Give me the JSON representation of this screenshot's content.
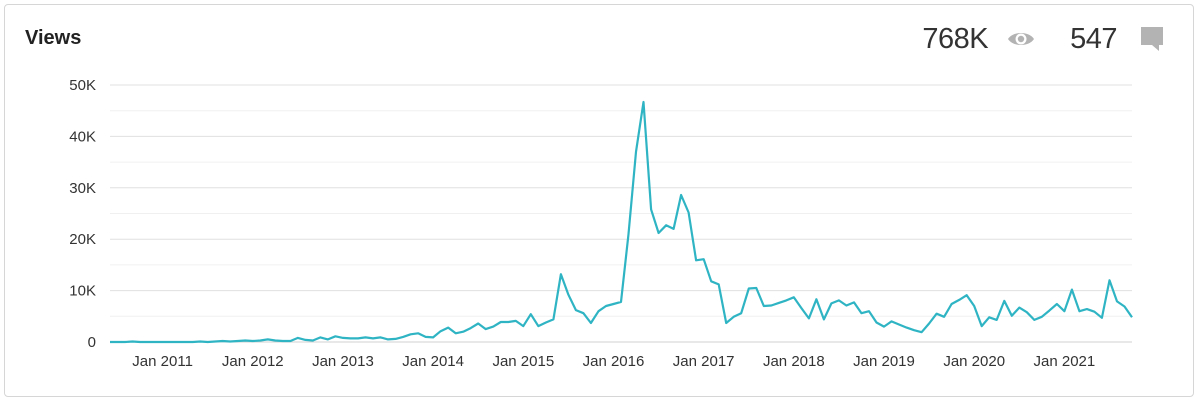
{
  "header": {
    "title": "Views",
    "views_count": "768K",
    "comments_count": "547"
  },
  "icons": {
    "views": "eye-icon",
    "comments": "comment-bubble-icon"
  },
  "colors": {
    "line": "#2fb4c4",
    "grid": "#e0e0e0",
    "icon": "#b3b3b3"
  },
  "chart_data": {
    "type": "line",
    "title": "Views",
    "xlabel": "",
    "ylabel": "",
    "grid": true,
    "legend": "none",
    "ylim": [
      0,
      50000
    ],
    "y_ticks": [
      0,
      10000,
      20000,
      30000,
      40000,
      50000
    ],
    "y_tick_labels": [
      "0",
      "10K",
      "20K",
      "30K",
      "40K",
      "50K"
    ],
    "x_ticks": [
      "2011-01",
      "2012-01",
      "2013-01",
      "2014-01",
      "2015-01",
      "2016-01",
      "2017-01",
      "2018-01",
      "2019-01",
      "2020-01",
      "2021-01"
    ],
    "x_tick_labels": [
      "Jan 2011",
      "Jan 2012",
      "Jan 2013",
      "Jan 2014",
      "Jan 2015",
      "Jan 2016",
      "Jan 2017",
      "Jan 2018",
      "Jan 2019",
      "Jan 2020",
      "Jan 2021"
    ],
    "series": [
      {
        "x_start": "2010-06",
        "x_step": "month",
        "values": [
          0,
          0,
          0,
          100,
          0,
          0,
          0,
          0,
          0,
          0,
          0,
          0,
          100,
          0,
          100,
          200,
          100,
          200,
          300,
          200,
          300,
          500,
          300,
          200,
          200,
          800,
          400,
          300,
          900,
          500,
          1100,
          800,
          700,
          700,
          900,
          700,
          900,
          500,
          600,
          1000,
          1500,
          1700,
          1000,
          900,
          2100,
          2800,
          1700,
          2000,
          2700,
          3600,
          2500,
          3000,
          3900,
          3900,
          4100,
          3100,
          5400,
          3100,
          3800,
          4400,
          13200,
          9200,
          6200,
          5600,
          3700,
          6000,
          7000,
          7400,
          7800,
          21000,
          37000,
          46700,
          25800,
          21200,
          22700,
          22000,
          28600,
          25200,
          15900,
          16100,
          11800,
          11200,
          3700,
          4900,
          5600,
          10400,
          10500,
          7000,
          7100,
          7600,
          8100,
          8700,
          6600,
          4600,
          8300,
          4400,
          7500,
          8100,
          7100,
          7700,
          5600,
          6000,
          3800,
          3000,
          4000,
          3400,
          2800,
          2300,
          1900,
          3600,
          5500,
          4900,
          7400,
          8200,
          9100,
          7000,
          3100,
          4800,
          4300,
          8000,
          5100,
          6700,
          5800,
          4300,
          4900,
          6100,
          7400,
          6000,
          10200,
          6000,
          6400,
          5900,
          4700,
          12000,
          7900,
          6900,
          4800
        ]
      }
    ]
  }
}
